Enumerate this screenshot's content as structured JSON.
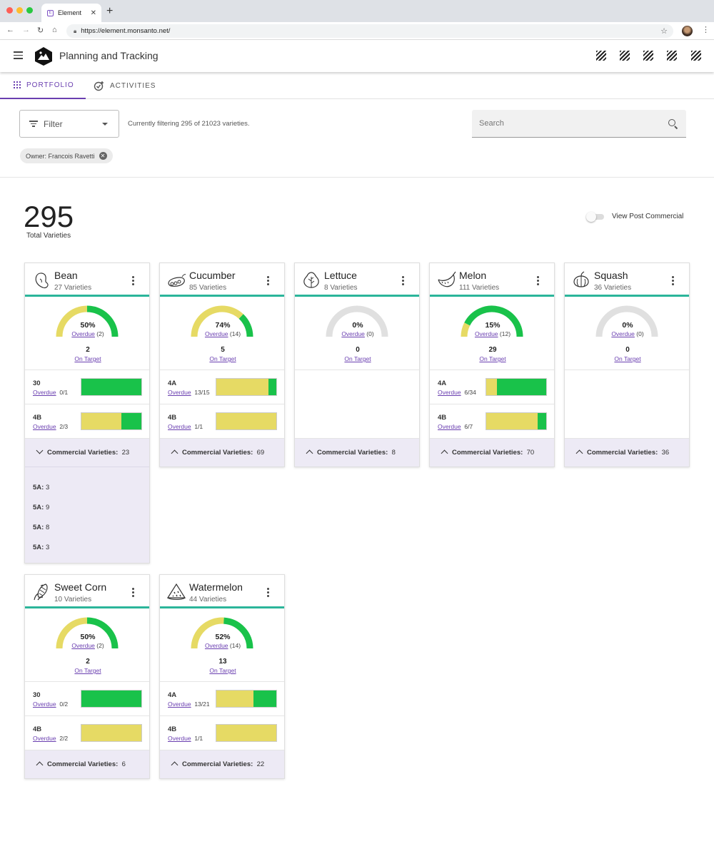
{
  "browser": {
    "tab_title": "Element",
    "tab_favicon": "E",
    "url": "https://element.monsanto.net/",
    "traffic_lights": [
      "#fe5f57",
      "#febc2e",
      "#28c840"
    ]
  },
  "header": {
    "title": "Planning and Tracking",
    "right_icon_count": 5
  },
  "tabs": [
    {
      "label": "PORTFOLIO",
      "active": true,
      "icon": "grid-icon"
    },
    {
      "label": "ACTIVITIES",
      "active": false,
      "icon": "activity-add-icon"
    }
  ],
  "filter": {
    "label": "Filter",
    "status": "Currently filtering 295 of 21023 varieties.",
    "chip": "Owner: Francois Ravetti"
  },
  "search": {
    "placeholder": "Search"
  },
  "summary": {
    "total": "295",
    "total_label": "Total Varieties",
    "toggle_label": "View Post Commercial",
    "toggle_on": false
  },
  "colors": {
    "accent": "#6a3fb0",
    "card_rule": "#2bb59a",
    "on_target": "#19c24a",
    "overdue": "#e6da64",
    "empty_gauge": "#e0e0e0",
    "commercial_bg": "#edeaf5"
  },
  "crops": [
    {
      "name": "Bean",
      "count": "27 Varieties",
      "icon": "bean-icon",
      "pct": "50%",
      "pct_value": 0.5,
      "overdue_label": "Overdue",
      "overdue_count": "(2)",
      "on_target_num": "2",
      "on_target_label": "On Target",
      "stages": [
        {
          "name": "30",
          "overdue_label": "Overdue",
          "ratio": "0/1",
          "overdue_fraction": 0
        },
        {
          "name": "4B",
          "overdue_label": "Overdue",
          "ratio": "2/3",
          "overdue_fraction": 0.667
        }
      ],
      "commercial_label": "Commercial Varieties:",
      "commercial_count": "23",
      "expanded": true,
      "commercial_items": [
        {
          "label": "5A:",
          "value": "3"
        },
        {
          "label": "5A:",
          "value": "9"
        },
        {
          "label": "5A:",
          "value": "8"
        },
        {
          "label": "5A:",
          "value": "3"
        }
      ]
    },
    {
      "name": "Cucumber",
      "count": "85 Varieties",
      "icon": "cucumber-icon",
      "pct": "74%",
      "pct_value": 0.74,
      "overdue_label": "Overdue",
      "overdue_count": "(14)",
      "on_target_num": "5",
      "on_target_label": "On Target",
      "stages": [
        {
          "name": "4A",
          "overdue_label": "Overdue",
          "ratio": "13/15",
          "overdue_fraction": 0.867
        },
        {
          "name": "4B",
          "overdue_label": "Overdue",
          "ratio": "1/1",
          "overdue_fraction": 1
        }
      ],
      "commercial_label": "Commercial Varieties:",
      "commercial_count": "69",
      "expanded": false,
      "commercial_items": []
    },
    {
      "name": "Lettuce",
      "count": "8 Varieties",
      "icon": "lettuce-icon",
      "pct": "0%",
      "pct_value": 0,
      "overdue_label": "Overdue",
      "overdue_count": "(0)",
      "on_target_num": "0",
      "on_target_label": "On Target",
      "stages": [],
      "commercial_label": "Commercial Varieties:",
      "commercial_count": "8",
      "expanded": false,
      "commercial_items": []
    },
    {
      "name": "Melon",
      "count": "111 Varieties",
      "icon": "melon-icon",
      "pct": "15%",
      "pct_value": 0.15,
      "overdue_label": "Overdue",
      "overdue_count": "(12)",
      "on_target_num": "29",
      "on_target_label": "On Target",
      "stages": [
        {
          "name": "4A",
          "overdue_label": "Overdue",
          "ratio": "6/34",
          "overdue_fraction": 0.176
        },
        {
          "name": "4B",
          "overdue_label": "Overdue",
          "ratio": "6/7",
          "overdue_fraction": 0.857
        }
      ],
      "commercial_label": "Commercial Varieties:",
      "commercial_count": "70",
      "expanded": false,
      "commercial_items": []
    },
    {
      "name": "Squash",
      "count": "36 Varieties",
      "icon": "squash-icon",
      "pct": "0%",
      "pct_value": 0,
      "overdue_label": "Overdue",
      "overdue_count": "(0)",
      "on_target_num": "0",
      "on_target_label": "On Target",
      "stages": [],
      "commercial_label": "Commercial Varieties:",
      "commercial_count": "36",
      "expanded": false,
      "commercial_items": []
    },
    {
      "name": "Sweet Corn",
      "count": "10 Varieties",
      "icon": "corn-icon",
      "pct": "50%",
      "pct_value": 0.5,
      "overdue_label": "Overdue",
      "overdue_count": "(2)",
      "on_target_num": "2",
      "on_target_label": "On Target",
      "stages": [
        {
          "name": "30",
          "overdue_label": "Overdue",
          "ratio": "0/2",
          "overdue_fraction": 0
        },
        {
          "name": "4B",
          "overdue_label": "Overdue",
          "ratio": "2/2",
          "overdue_fraction": 1
        }
      ],
      "commercial_label": "Commercial Varieties:",
      "commercial_count": "6",
      "expanded": false,
      "commercial_items": []
    },
    {
      "name": "Watermelon",
      "count": "44 Varieties",
      "icon": "watermelon-icon",
      "pct": "52%",
      "pct_value": 0.52,
      "overdue_label": "Overdue",
      "overdue_count": "(14)",
      "on_target_num": "13",
      "on_target_label": "On Target",
      "stages": [
        {
          "name": "4A",
          "overdue_label": "Overdue",
          "ratio": "13/21",
          "overdue_fraction": 0.619
        },
        {
          "name": "4B",
          "overdue_label": "Overdue",
          "ratio": "1/1",
          "overdue_fraction": 1
        }
      ],
      "commercial_label": "Commercial Varieties:",
      "commercial_count": "22",
      "expanded": false,
      "commercial_items": []
    }
  ]
}
